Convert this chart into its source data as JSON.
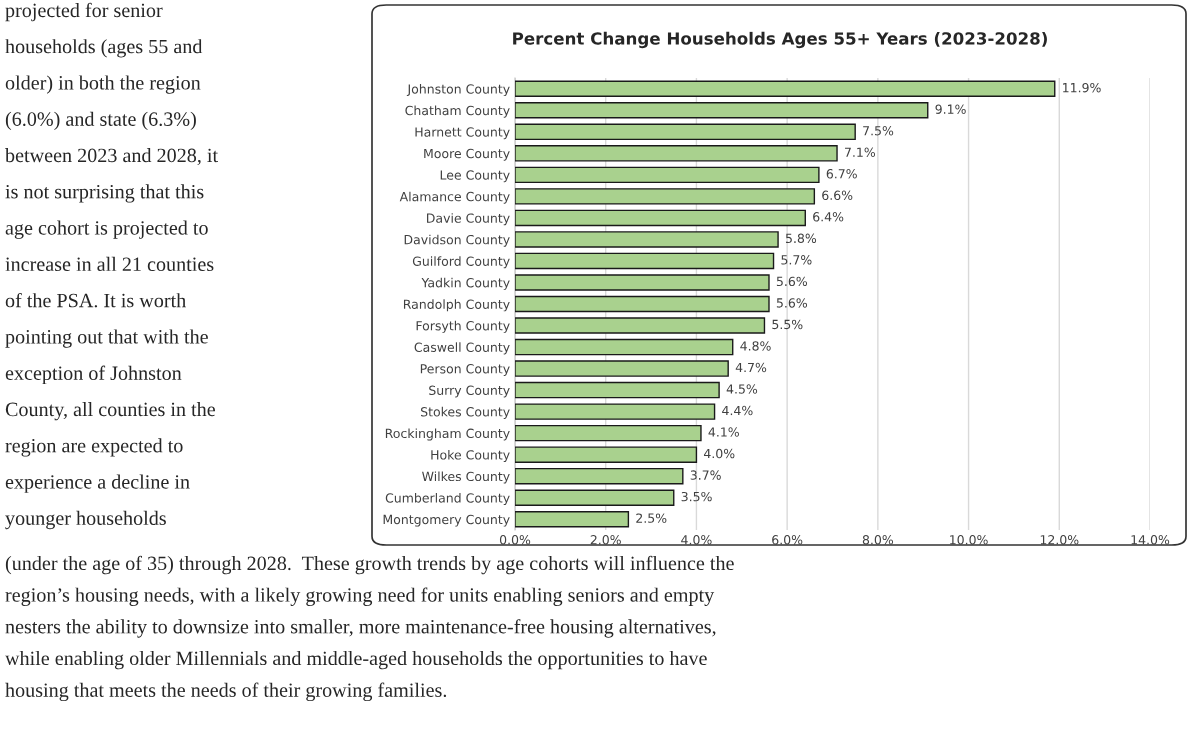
{
  "chart_data": {
    "type": "bar",
    "orientation": "horizontal",
    "title": "Percent Change Households Ages 55+ Years (2023-2028)",
    "categories": [
      "Johnston County",
      "Chatham County",
      "Harnett County",
      "Moore County",
      "Lee County",
      "Alamance County",
      "Davie County",
      "Davidson County",
      "Guilford County",
      "Yadkin County",
      "Randolph County",
      "Forsyth County",
      "Caswell County",
      "Person County",
      "Surry County",
      "Stokes County",
      "Rockingham County",
      "Hoke County",
      "Wilkes County",
      "Cumberland County",
      "Montgomery County"
    ],
    "values": [
      11.9,
      9.1,
      7.5,
      7.1,
      6.7,
      6.6,
      6.4,
      5.8,
      5.7,
      5.6,
      5.6,
      5.5,
      4.8,
      4.7,
      4.5,
      4.4,
      4.1,
      4.0,
      3.7,
      3.5,
      2.5
    ],
    "value_labels": [
      "11.9%",
      "9.1%",
      "7.5%",
      "7.1%",
      "6.7%",
      "6.6%",
      "6.4%",
      "5.8%",
      "5.7%",
      "5.6%",
      "5.6%",
      "5.5%",
      "4.8%",
      "4.7%",
      "4.5%",
      "4.4%",
      "4.1%",
      "4.0%",
      "3.7%",
      "3.5%",
      "2.5%"
    ],
    "color": "#a9d18e",
    "xlim": [
      0,
      14
    ],
    "xticks": [
      {
        "value": 0,
        "label": "0.0%"
      },
      {
        "value": 2,
        "label": "2.0%"
      },
      {
        "value": 4,
        "label": "4.0%"
      },
      {
        "value": 6,
        "label": "6.0%"
      },
      {
        "value": 8,
        "label": "8.0%"
      },
      {
        "value": 10,
        "label": "10.0%"
      },
      {
        "value": 12,
        "label": "12.0%"
      },
      {
        "value": 14,
        "label": "14.0%"
      }
    ],
    "grid": "x",
    "legend": false,
    "annotations": [
      "projected for senior",
      "households (ages 55 and",
      "older) in both the region",
      "(6.0%) and state (6.3%)",
      "between 2023 and 2028, it",
      "is not surprising that this",
      "age cohort is projected to",
      "increase in all 21 counties",
      "of the PSA. It is worth",
      "pointing out that with the",
      "exception of Johnston",
      "County, all counties in the",
      "region are expected to",
      "experience a decline in",
      "younger households",
      "(under the age of 35) through 2028.  These growth trends by age cohorts will influence the",
      "region’s housing needs, with a likely growing need for units enabling seniors and empty",
      "nesters the ability to downsize into smaller, more maintenance-free housing alternatives,",
      "while enabling older Millennials and middle-aged households the opportunities to have",
      "housing that meets the needs of their growing families."
    ]
  }
}
